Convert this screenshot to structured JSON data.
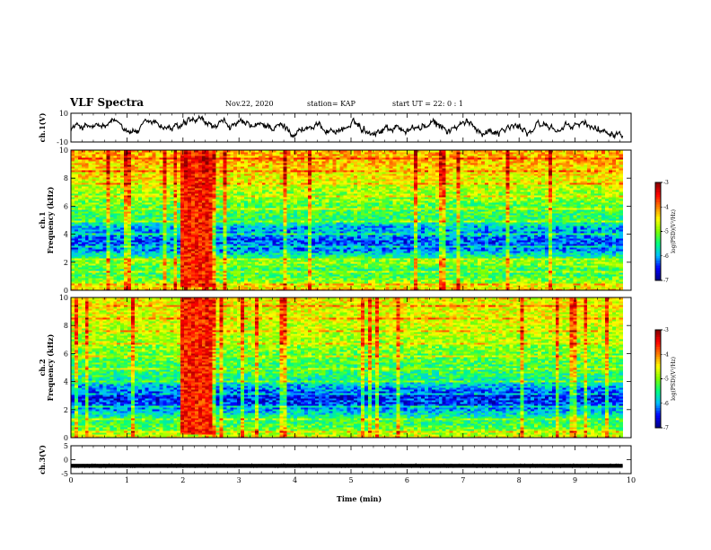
{
  "header": {
    "title": "VLF Spectra",
    "date": "Nov.22, 2020",
    "station": "station= KAP",
    "start_ut": "start UT =  22: 0 : 1"
  },
  "chart_data": {
    "type": "heatmap",
    "x_axis": {
      "label": "Time (min)",
      "range": [
        0,
        10
      ],
      "ticks": [
        "0",
        "1",
        "2",
        "3",
        "4",
        "5",
        "6",
        "7",
        "8",
        "9",
        "10"
      ],
      "data_end": 9.85
    },
    "panels": [
      {
        "name": "ch.1(V)",
        "type": "line",
        "ylabel": "ch.1(V)",
        "ylim": [
          -10,
          10
        ],
        "yticks": [
          "-10",
          "10"
        ],
        "approx_mean": 0,
        "approx_range": [
          -7,
          8
        ]
      },
      {
        "name": "ch.1",
        "type": "heatmap",
        "ylabel_line1": "ch.1",
        "ylabel_line2": "Frequency (kHz)",
        "ylim": [
          0,
          10
        ],
        "yticks": [
          "0",
          "2",
          "4",
          "6",
          "8",
          "10"
        ],
        "burst_interval_min": [
          1.95,
          2.55
        ],
        "colorbar": {
          "label": "log(PSD)(V²/Hz)",
          "range": [
            -7,
            -3
          ],
          "ticks": [
            "-3",
            "-4",
            "-5",
            "-6",
            "-7"
          ]
        },
        "band_profile_khz_logpsd": [
          [
            0.0,
            -4.2
          ],
          [
            0.5,
            -4.8
          ],
          [
            1.0,
            -5.2
          ],
          [
            1.5,
            -5.4
          ],
          [
            2.0,
            -4.9
          ],
          [
            2.5,
            -5.6
          ],
          [
            3.0,
            -6.2
          ],
          [
            3.5,
            -6.3
          ],
          [
            4.0,
            -6.0
          ],
          [
            4.5,
            -6.0
          ],
          [
            5.0,
            -5.4
          ],
          [
            5.5,
            -5.3
          ],
          [
            6.0,
            -5.2
          ],
          [
            6.5,
            -5.0
          ],
          [
            7.0,
            -4.9
          ],
          [
            7.5,
            -4.7
          ],
          [
            8.0,
            -4.5
          ],
          [
            8.5,
            -4.4
          ],
          [
            9.0,
            -4.3
          ],
          [
            10.0,
            -4.2
          ]
        ]
      },
      {
        "name": "ch.2",
        "type": "heatmap",
        "ylabel_line1": "ch.2",
        "ylabel_line2": "Frequency (kHz)",
        "ylim": [
          0,
          10
        ],
        "yticks": [
          "0",
          "2",
          "4",
          "6",
          "8",
          "10"
        ],
        "burst_interval_min": [
          1.95,
          2.55
        ],
        "colorbar": {
          "label": "log(PSD)(V²/Hz)",
          "range": [
            -7,
            -3
          ],
          "ticks": [
            "-3",
            "-4",
            "-5",
            "-6",
            "-7"
          ]
        },
        "band_profile_khz_logpsd": [
          [
            0.0,
            -4.5
          ],
          [
            0.5,
            -5.0
          ],
          [
            1.0,
            -5.3
          ],
          [
            1.5,
            -5.5
          ],
          [
            2.0,
            -6.0
          ],
          [
            2.5,
            -6.4
          ],
          [
            3.0,
            -6.5
          ],
          [
            3.5,
            -6.1
          ],
          [
            4.0,
            -5.7
          ],
          [
            4.5,
            -5.4
          ],
          [
            5.0,
            -5.3
          ],
          [
            5.5,
            -5.2
          ],
          [
            6.0,
            -5.1
          ],
          [
            6.5,
            -5.0
          ],
          [
            7.0,
            -4.8
          ],
          [
            7.5,
            -4.8
          ],
          [
            8.0,
            -4.7
          ],
          [
            8.5,
            -4.6
          ],
          [
            9.0,
            -4.6
          ],
          [
            10.0,
            -4.5
          ]
        ]
      },
      {
        "name": "ch.3(V)",
        "type": "line",
        "ylabel": "ch.3(V)",
        "ylim": [
          -5,
          5
        ],
        "yticks": [
          "-5",
          "0",
          "5"
        ],
        "approx_mean": -2.2,
        "approx_range": [
          -2.9,
          -1.5
        ]
      }
    ],
    "colors": {
      "line": "#000000",
      "background": "#ffffff",
      "colormap": [
        "#000080",
        "#0000ff",
        "#00bfff",
        "#00ff7f",
        "#7fff00",
        "#ffff00",
        "#ff8000",
        "#ff0000",
        "#800000"
      ]
    }
  }
}
